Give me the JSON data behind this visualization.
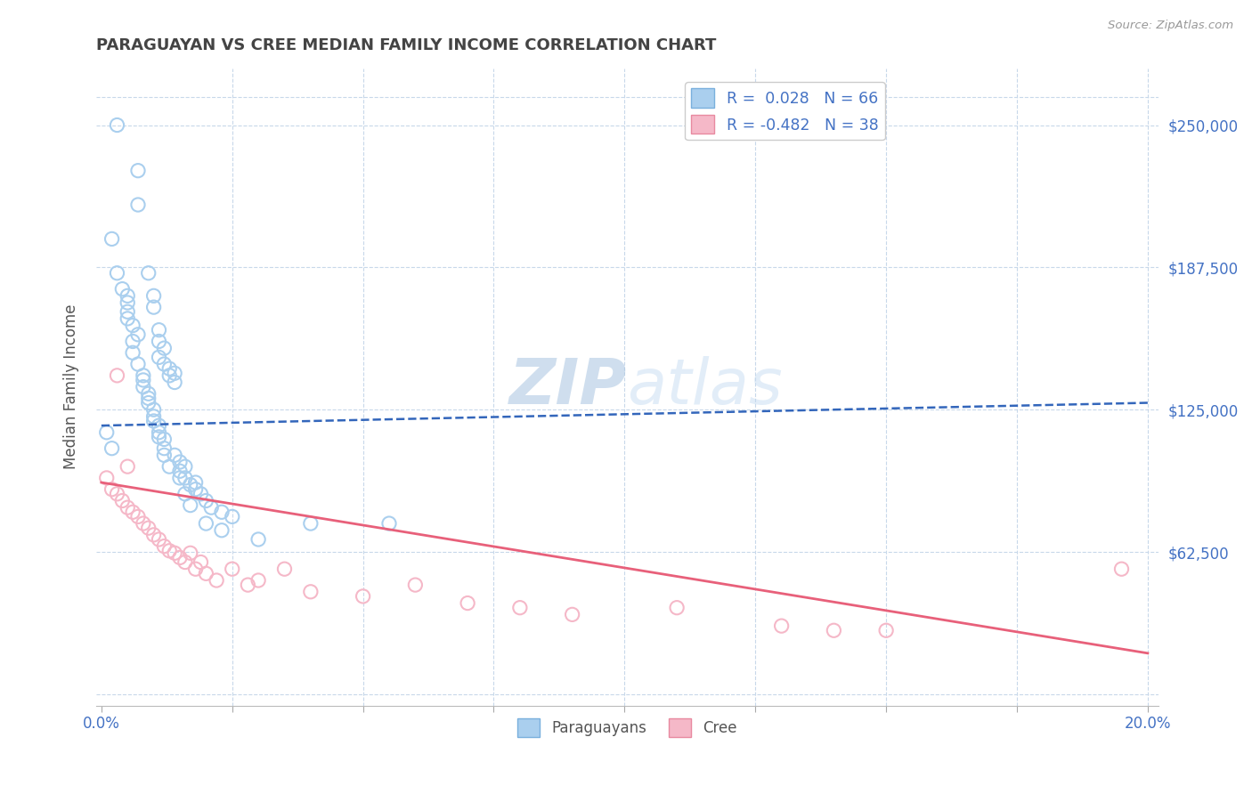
{
  "title": "PARAGUAYAN VS CREE MEDIAN FAMILY INCOME CORRELATION CHART",
  "source": "Source: ZipAtlas.com",
  "xlabel": "",
  "ylabel": "Median Family Income",
  "xlim": [
    -0.001,
    0.202
  ],
  "ylim": [
    -5000,
    275000
  ],
  "yticks": [
    0,
    62500,
    125000,
    187500,
    250000
  ],
  "ytick_labels": [
    "",
    "$62,500",
    "$125,000",
    "$187,500",
    "$250,000"
  ],
  "xticks": [
    0.0,
    0.025,
    0.05,
    0.075,
    0.1,
    0.125,
    0.15,
    0.175,
    0.2
  ],
  "xtick_labels": [
    "0.0%",
    "",
    "",
    "",
    "",
    "",
    "",
    "",
    "20.0%"
  ],
  "paraguayan_color": "#aacfee",
  "cree_color": "#f5b8c8",
  "paraguayan_edge_color": "#7ab0dd",
  "cree_edge_color": "#e88aa0",
  "paraguayan_line_color": "#3366bb",
  "cree_line_color": "#e8607a",
  "R_paraguayan": 0.028,
  "N_paraguayan": 66,
  "R_cree": -0.482,
  "N_cree": 38,
  "watermark_zip": "ZIP",
  "watermark_atlas": "atlas",
  "background_color": "#ffffff",
  "grid_color": "#c8d8ea",
  "tick_label_color": "#4472c4",
  "ylabel_color": "#555555",
  "title_color": "#444444",
  "paraguayan_scatter_x": [
    0.003,
    0.007,
    0.007,
    0.009,
    0.01,
    0.01,
    0.011,
    0.011,
    0.011,
    0.012,
    0.012,
    0.013,
    0.013,
    0.014,
    0.014,
    0.005,
    0.005,
    0.006,
    0.006,
    0.007,
    0.008,
    0.008,
    0.009,
    0.009,
    0.01,
    0.01,
    0.011,
    0.011,
    0.012,
    0.012,
    0.014,
    0.015,
    0.015,
    0.016,
    0.016,
    0.017,
    0.018,
    0.018,
    0.019,
    0.02,
    0.021,
    0.023,
    0.025,
    0.002,
    0.003,
    0.004,
    0.005,
    0.005,
    0.006,
    0.007,
    0.008,
    0.009,
    0.01,
    0.011,
    0.012,
    0.013,
    0.015,
    0.016,
    0.017,
    0.02,
    0.023,
    0.03,
    0.001,
    0.002,
    0.04,
    0.055
  ],
  "paraguayan_scatter_y": [
    250000,
    230000,
    215000,
    185000,
    170000,
    175000,
    160000,
    148000,
    155000,
    145000,
    152000,
    140000,
    143000,
    137000,
    141000,
    165000,
    175000,
    155000,
    150000,
    145000,
    140000,
    135000,
    132000,
    128000,
    125000,
    122000,
    118000,
    115000,
    112000,
    108000,
    105000,
    102000,
    98000,
    100000,
    95000,
    92000,
    90000,
    93000,
    88000,
    85000,
    82000,
    80000,
    78000,
    200000,
    185000,
    178000,
    168000,
    172000,
    162000,
    158000,
    138000,
    130000,
    120000,
    113000,
    105000,
    100000,
    95000,
    88000,
    83000,
    75000,
    72000,
    68000,
    115000,
    108000,
    75000,
    75000
  ],
  "cree_scatter_x": [
    0.001,
    0.002,
    0.003,
    0.004,
    0.005,
    0.006,
    0.007,
    0.008,
    0.009,
    0.01,
    0.011,
    0.012,
    0.013,
    0.014,
    0.015,
    0.016,
    0.017,
    0.018,
    0.019,
    0.02,
    0.022,
    0.025,
    0.028,
    0.03,
    0.035,
    0.04,
    0.05,
    0.06,
    0.07,
    0.08,
    0.09,
    0.11,
    0.13,
    0.15,
    0.195,
    0.003,
    0.005,
    0.14
  ],
  "cree_scatter_y": [
    95000,
    90000,
    88000,
    85000,
    82000,
    80000,
    78000,
    75000,
    73000,
    70000,
    68000,
    65000,
    63000,
    62000,
    60000,
    58000,
    62000,
    55000,
    58000,
    53000,
    50000,
    55000,
    48000,
    50000,
    55000,
    45000,
    43000,
    48000,
    40000,
    38000,
    35000,
    38000,
    30000,
    28000,
    55000,
    140000,
    100000,
    28000
  ],
  "paraguayan_trend_x": [
    0.0,
    0.2
  ],
  "paraguayan_trend_y": [
    118000,
    128000
  ],
  "cree_trend_x": [
    0.0,
    0.2
  ],
  "cree_trend_y": [
    93000,
    18000
  ]
}
